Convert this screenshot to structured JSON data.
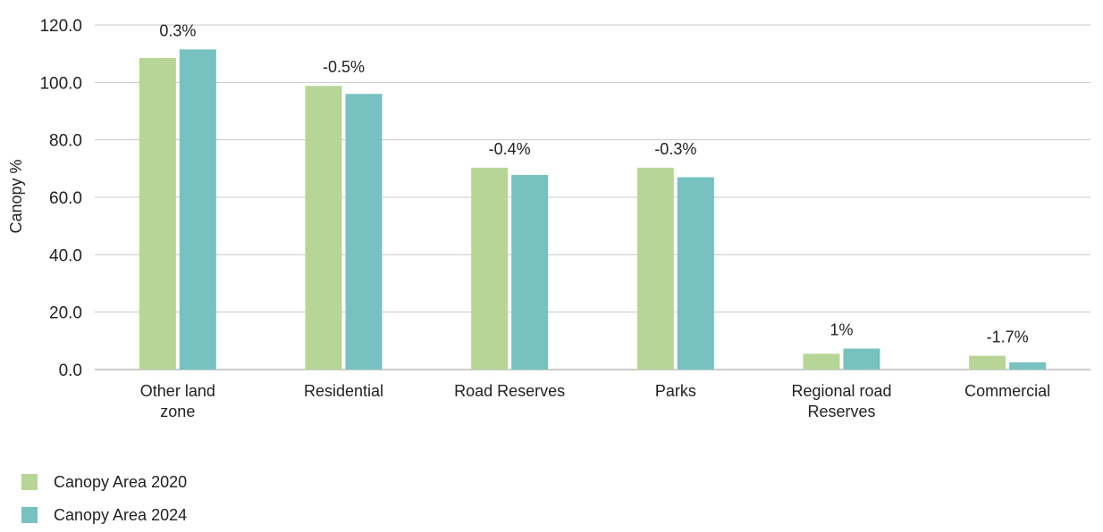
{
  "chart_data": {
    "type": "bar",
    "title": "",
    "xlabel": "",
    "ylabel": "Canopy %",
    "ylim": [
      0,
      120
    ],
    "yticks": [
      "0.0",
      "20.0",
      "40.0",
      "60.0",
      "80.0",
      "100.0",
      "120.0"
    ],
    "grid": true,
    "legend_position": "bottom-left",
    "categories": [
      [
        "Other land",
        "zone"
      ],
      [
        "Residential"
      ],
      [
        "Road Reserves"
      ],
      [
        "Parks"
      ],
      [
        "Regional road",
        "Reserves"
      ],
      [
        "Commercial"
      ]
    ],
    "series": [
      {
        "name": "Canopy Area 2020",
        "color": "#b8d598",
        "values": [
          108.5,
          98.8,
          70.3,
          70.3,
          5.5,
          4.8
        ]
      },
      {
        "name": "Canopy Area 2024",
        "color": "#77c1c1",
        "values": [
          111.5,
          96.0,
          67.8,
          67.0,
          7.3,
          2.5
        ]
      }
    ],
    "change_labels": [
      "0.3%",
      "-0.5%",
      "-0.4%",
      "-0.3%",
      "1%",
      "-1.7%"
    ]
  }
}
